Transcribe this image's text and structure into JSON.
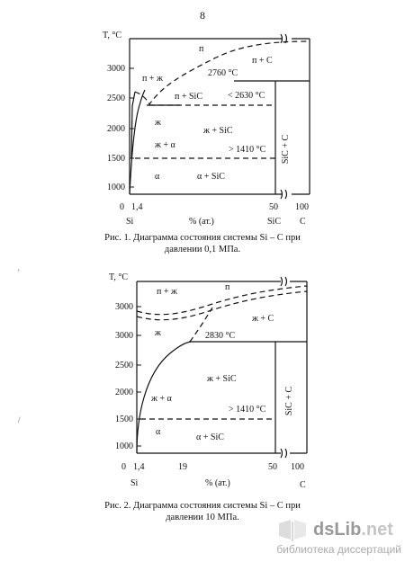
{
  "page_number": "8",
  "margin_marks": [
    "'",
    "/"
  ],
  "figures": [
    {
      "caption_l1": "Рис. 1. Диаграмма состояния системы Si – C при",
      "caption_l2": "давлении 0,1 МПа.",
      "y_axis_label": "T, °C",
      "y_ticks": [
        "3000",
        "2500",
        "2000",
        "1500",
        "1000"
      ],
      "x_origin": "0",
      "x_ticks": [
        "1,4",
        "50",
        "100"
      ],
      "x_bottom": [
        "Si",
        "% (ат.)",
        "SiC",
        "C"
      ],
      "regions": {
        "vapor": "п",
        "vapor_c": "п + C",
        "vapor_liq": "п + ж",
        "vapor_sic": "п + SiC",
        "liquid": "ж",
        "liq_sic": "ж + SiC",
        "liq_alpha": "ж + α",
        "alpha": "α",
        "alpha_sic": "α + SiC",
        "sic_c": "SiC + C"
      },
      "temps": {
        "t1": "2760 °C",
        "t2": "< 2630 °C",
        "t3": "> 1410 °C"
      }
    },
    {
      "caption_l1": "Рис. 2. Диаграмма состояния системы Si – C при",
      "caption_l2": "давлении 10 МПа.",
      "y_axis_label": "T, °C",
      "y_ticks": [
        "3000",
        "3000",
        "2500",
        "2000",
        "1500",
        "1000"
      ],
      "x_origin": "0",
      "x_ticks": [
        "1,4",
        "19",
        "50",
        "100"
      ],
      "x_bottom": [
        "Si",
        "% (ат.)",
        "C"
      ],
      "regions": {
        "vapor": "п",
        "vapor_liq": "п + ж",
        "liq_c": "ж + C",
        "liquid": "ж",
        "liq_sic": "ж + SiC",
        "liq_alpha": "ж + α",
        "alpha": "α",
        "alpha_sic": "α + SiC",
        "sic_c": "SiC + C"
      },
      "temps": {
        "t1": "2830 °C",
        "t3": "> 1410 °C"
      }
    }
  ],
  "watermark": {
    "logo_a": "dsLib",
    "logo_b": ".net",
    "tagline": "библиотека диссертаций"
  }
}
